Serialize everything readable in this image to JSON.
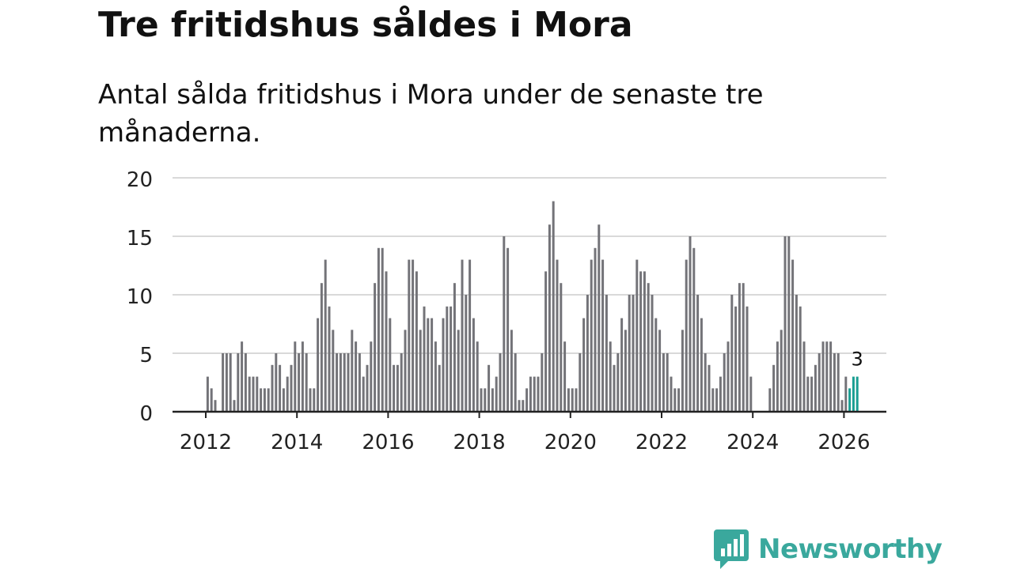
{
  "title": "Tre fritidshus såldes i Mora",
  "subtitle": "Antal sålda fritidshus i Mora under de senaste tre månaderna.",
  "brand": "Newsworthy",
  "colors": {
    "bar": "#737378",
    "highlight": "#1a9e92",
    "grid": "#d9d9d9",
    "axis": "#222222",
    "brand": "#3aa89d"
  },
  "chart_data": {
    "type": "bar",
    "title": "Tre fritidshus såldes i Mora",
    "subtitle": "Antal sålda fritidshus i Mora under de senaste tre månaderna.",
    "xlabel": "",
    "ylabel": "",
    "ylim": [
      0,
      20
    ],
    "yticks": [
      0,
      5,
      10,
      15,
      20
    ],
    "xticks": [
      "2012",
      "2014",
      "2016",
      "2018",
      "2020",
      "2022",
      "2024",
      "2026"
    ],
    "x_start": "2012-01",
    "frequency": "monthly",
    "values": [
      3,
      2,
      1,
      0,
      5,
      5,
      5,
      1,
      5,
      6,
      5,
      3,
      3,
      3,
      2,
      2,
      2,
      4,
      5,
      4,
      2,
      3,
      4,
      6,
      5,
      6,
      5,
      2,
      2,
      8,
      11,
      13,
      9,
      7,
      5,
      5,
      5,
      5,
      7,
      6,
      5,
      3,
      4,
      6,
      11,
      14,
      14,
      12,
      8,
      4,
      4,
      5,
      7,
      13,
      13,
      12,
      7,
      9,
      8,
      8,
      6,
      4,
      8,
      9,
      9,
      11,
      7,
      13,
      10,
      13,
      8,
      6,
      2,
      2,
      4,
      2,
      3,
      5,
      15,
      14,
      7,
      5,
      1,
      1,
      2,
      3,
      3,
      3,
      5,
      12,
      16,
      18,
      13,
      11,
      6,
      2,
      2,
      2,
      5,
      8,
      10,
      13,
      14,
      16,
      13,
      10,
      6,
      4,
      5,
      8,
      7,
      10,
      10,
      13,
      12,
      12,
      11,
      10,
      8,
      7,
      5,
      5,
      3,
      2,
      2,
      7,
      13,
      15,
      14,
      10,
      8,
      5,
      4,
      2,
      2,
      3,
      5,
      6,
      10,
      9,
      11,
      11,
      9,
      3,
      0,
      0,
      0,
      0,
      2,
      4,
      6,
      7,
      15,
      15,
      13,
      10,
      9,
      6,
      3,
      3,
      4,
      5,
      6,
      6,
      6,
      5,
      5,
      1,
      3,
      2,
      3,
      3
    ],
    "highlight_last": 3,
    "annotation": {
      "label": "3",
      "value": 3
    }
  }
}
